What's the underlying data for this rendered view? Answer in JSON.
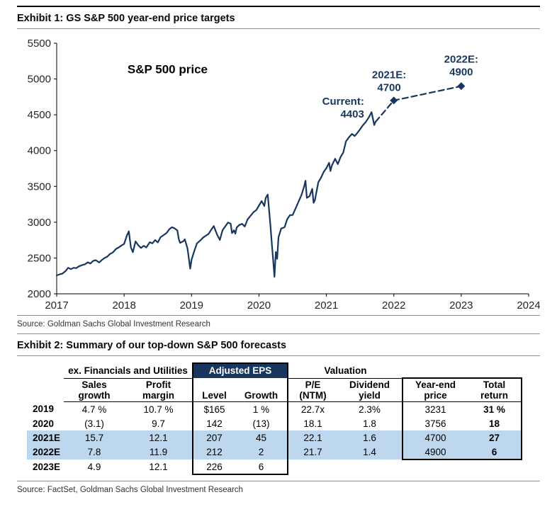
{
  "exhibit1": {
    "title": "Exhibit 1: GS S&P 500 year-end price targets",
    "source": "Source: Goldman Sachs Global Investment Research"
  },
  "chart_data": {
    "type": "line",
    "title": "S&P 500 price",
    "title_pos": {
      "x": 2018.05,
      "y": 5080
    },
    "xlabel": "",
    "ylabel": "",
    "xlim": [
      2017,
      2024
    ],
    "ylim": [
      2000,
      5500
    ],
    "x_ticks": [
      2017,
      2018,
      2019,
      2020,
      2021,
      2022,
      2023,
      2024
    ],
    "y_ticks": [
      2000,
      2500,
      3000,
      3500,
      4000,
      4500,
      5000,
      5500
    ],
    "grid": false,
    "legend": "none",
    "line_color": "#17375e",
    "axis_color": "#262626",
    "series": [
      {
        "name": "S&P 500 price history",
        "style": "solid",
        "points": [
          [
            2017.0,
            2257
          ],
          [
            2017.04,
            2271
          ],
          [
            2017.08,
            2280
          ],
          [
            2017.13,
            2316
          ],
          [
            2017.17,
            2364
          ],
          [
            2017.21,
            2344
          ],
          [
            2017.25,
            2363
          ],
          [
            2017.29,
            2359
          ],
          [
            2017.33,
            2384
          ],
          [
            2017.38,
            2402
          ],
          [
            2017.42,
            2412
          ],
          [
            2017.46,
            2440
          ],
          [
            2017.5,
            2423
          ],
          [
            2017.54,
            2460
          ],
          [
            2017.58,
            2470
          ],
          [
            2017.63,
            2438
          ],
          [
            2017.67,
            2472
          ],
          [
            2017.71,
            2500
          ],
          [
            2017.75,
            2519
          ],
          [
            2017.79,
            2557
          ],
          [
            2017.83,
            2575
          ],
          [
            2017.88,
            2627
          ],
          [
            2017.92,
            2648
          ],
          [
            2017.96,
            2674
          ],
          [
            2018.0,
            2696
          ],
          [
            2018.04,
            2810
          ],
          [
            2018.07,
            2873
          ],
          [
            2018.1,
            2648
          ],
          [
            2018.13,
            2581
          ],
          [
            2018.17,
            2732
          ],
          [
            2018.21,
            2678
          ],
          [
            2018.25,
            2641
          ],
          [
            2018.29,
            2670
          ],
          [
            2018.33,
            2648
          ],
          [
            2018.38,
            2720
          ],
          [
            2018.42,
            2705
          ],
          [
            2018.46,
            2750
          ],
          [
            2018.5,
            2718
          ],
          [
            2018.54,
            2790
          ],
          [
            2018.58,
            2816
          ],
          [
            2018.63,
            2850
          ],
          [
            2018.67,
            2902
          ],
          [
            2018.71,
            2930
          ],
          [
            2018.75,
            2914
          ],
          [
            2018.79,
            2885
          ],
          [
            2018.81,
            2768
          ],
          [
            2018.83,
            2712
          ],
          [
            2018.88,
            2736
          ],
          [
            2018.9,
            2760
          ],
          [
            2018.94,
            2633
          ],
          [
            2018.98,
            2351
          ],
          [
            2019.0,
            2476
          ],
          [
            2019.04,
            2596
          ],
          [
            2019.08,
            2704
          ],
          [
            2019.13,
            2745
          ],
          [
            2019.17,
            2784
          ],
          [
            2019.21,
            2811
          ],
          [
            2019.25,
            2834
          ],
          [
            2019.29,
            2892
          ],
          [
            2019.33,
            2946
          ],
          [
            2019.38,
            2826
          ],
          [
            2019.42,
            2752
          ],
          [
            2019.46,
            2890
          ],
          [
            2019.5,
            2942
          ],
          [
            2019.54,
            2995
          ],
          [
            2019.58,
            2980
          ],
          [
            2019.6,
            2847
          ],
          [
            2019.63,
            2888
          ],
          [
            2019.65,
            2840
          ],
          [
            2019.67,
            2926
          ],
          [
            2019.71,
            2962
          ],
          [
            2019.75,
            2977
          ],
          [
            2019.79,
            2940
          ],
          [
            2019.83,
            3038
          ],
          [
            2019.88,
            3094
          ],
          [
            2019.92,
            3141
          ],
          [
            2019.96,
            3169
          ],
          [
            2020.0,
            3231
          ],
          [
            2020.04,
            3295
          ],
          [
            2020.08,
            3226
          ],
          [
            2020.1,
            3338
          ],
          [
            2020.13,
            3386
          ],
          [
            2020.17,
            2954
          ],
          [
            2020.19,
            2711
          ],
          [
            2020.21,
            2481
          ],
          [
            2020.23,
            2237
          ],
          [
            2020.25,
            2585
          ],
          [
            2020.27,
            2489
          ],
          [
            2020.29,
            2790
          ],
          [
            2020.33,
            2912
          ],
          [
            2020.38,
            2930
          ],
          [
            2020.42,
            3044
          ],
          [
            2020.46,
            3098
          ],
          [
            2020.5,
            3100
          ],
          [
            2020.54,
            3185
          ],
          [
            2020.58,
            3271
          ],
          [
            2020.63,
            3380
          ],
          [
            2020.67,
            3500
          ],
          [
            2020.69,
            3580
          ],
          [
            2020.71,
            3340
          ],
          [
            2020.75,
            3363
          ],
          [
            2020.79,
            3465
          ],
          [
            2020.81,
            3270
          ],
          [
            2020.83,
            3310
          ],
          [
            2020.88,
            3558
          ],
          [
            2020.92,
            3622
          ],
          [
            2020.96,
            3703
          ],
          [
            2021.0,
            3756
          ],
          [
            2021.04,
            3830
          ],
          [
            2021.06,
            3714
          ],
          [
            2021.08,
            3790
          ],
          [
            2021.13,
            3886
          ],
          [
            2021.17,
            3811
          ],
          [
            2021.21,
            3910
          ],
          [
            2021.25,
            3973
          ],
          [
            2021.29,
            4128
          ],
          [
            2021.33,
            4181
          ],
          [
            2021.38,
            4233
          ],
          [
            2021.42,
            4204
          ],
          [
            2021.46,
            4247
          ],
          [
            2021.5,
            4298
          ],
          [
            2021.54,
            4352
          ],
          [
            2021.58,
            4395
          ],
          [
            2021.63,
            4465
          ],
          [
            2021.67,
            4537
          ],
          [
            2021.71,
            4357
          ],
          [
            2021.73,
            4403
          ]
        ]
      },
      {
        "name": "GS year-end targets",
        "style": "dashed",
        "points": [
          [
            2021.73,
            4403
          ],
          [
            2022.0,
            4700
          ],
          [
            2023.0,
            4900
          ]
        ],
        "markers": [
          [
            2022.0,
            4700
          ],
          [
            2023.0,
            4900
          ]
        ]
      }
    ],
    "annotations": [
      {
        "lines": [
          "Current:",
          "4403"
        ],
        "x": 2021.56,
        "y": 4640,
        "anchor": "end"
      },
      {
        "lines": [
          "2021E:",
          "4700"
        ],
        "x": 2021.93,
        "y": 5010,
        "anchor": "middle"
      },
      {
        "lines": [
          "2022E:",
          "4900"
        ],
        "x": 2023.0,
        "y": 5230,
        "anchor": "middle"
      }
    ]
  },
  "exhibit2": {
    "title": "Exhibit 2: Summary of our top-down S&P 500 forecasts",
    "source": "Source: FactSet, Goldman Sachs Global Investment Research",
    "table": {
      "highlight_color": "#bdd7ee",
      "eps_header_bg": "#17375e",
      "groups": [
        {
          "label": "",
          "span": 1
        },
        {
          "label": "ex. Financials and Utilities",
          "span": 2
        },
        {
          "label": "Adjusted EPS",
          "span": 2
        },
        {
          "label": "Valuation",
          "span": 2
        },
        {
          "label": "",
          "span": 2
        }
      ],
      "headers": [
        [
          "Sales",
          "growth"
        ],
        [
          "Profit",
          "margin"
        ],
        [
          "Level"
        ],
        [
          "Growth"
        ],
        [
          "P/E",
          "(NTM)"
        ],
        [
          "Dividend",
          "yield"
        ],
        [
          "Year-end",
          "price"
        ],
        [
          "Total",
          "return"
        ]
      ],
      "rows": [
        {
          "label": "2019",
          "cells": [
            "4.7 %",
            "10.7 %",
            "$165",
            "1 %",
            "22.7x",
            "2.3%",
            "3231",
            "31 %"
          ],
          "highlight": false
        },
        {
          "label": "2020",
          "cells": [
            "(3.1)",
            "9.7",
            "142",
            "(13)",
            "18.1",
            "1.8",
            "3756",
            "18"
          ],
          "highlight": false
        },
        {
          "label": "2021E",
          "cells": [
            "15.7",
            "12.1",
            "207",
            "45",
            "22.1",
            "1.6",
            "4700",
            "27"
          ],
          "highlight": true
        },
        {
          "label": "2022E",
          "cells": [
            "7.8",
            "11.9",
            "212",
            "2",
            "21.7",
            "1.4",
            "4900",
            "6"
          ],
          "highlight": true
        },
        {
          "label": "2023E",
          "cells": [
            "4.9",
            "12.1",
            "226",
            "6",
            "",
            "",
            "",
            ""
          ],
          "highlight": false
        }
      ]
    }
  }
}
